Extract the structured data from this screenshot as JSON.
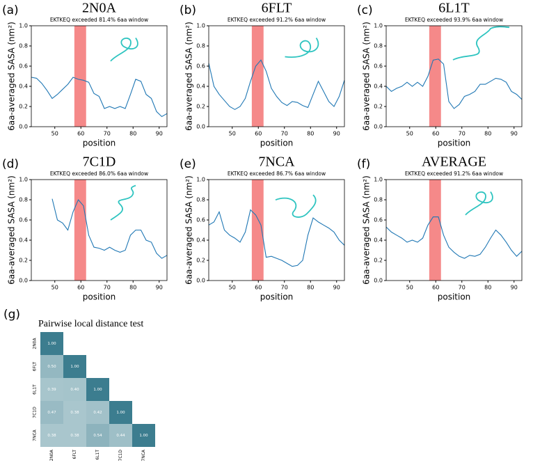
{
  "chart_data": [
    {
      "type": "line",
      "panel_label": "(a)",
      "title": "2N0A",
      "subtitle": "EKTKEQ exceeded 81.4% 6aa window",
      "x_label": "position",
      "y_label": "6aa-averaged SASA (nm²)",
      "x": [
        41,
        43,
        45,
        47,
        49,
        51,
        53,
        55,
        57,
        59,
        61,
        63,
        65,
        67,
        69,
        71,
        73,
        75,
        77,
        79,
        81,
        83,
        85,
        87,
        89,
        91,
        93
      ],
      "values": [
        0.49,
        0.48,
        0.43,
        0.36,
        0.28,
        0.32,
        0.37,
        0.42,
        0.49,
        0.47,
        0.46,
        0.44,
        0.33,
        0.3,
        0.18,
        0.2,
        0.18,
        0.2,
        0.18,
        0.32,
        0.47,
        0.45,
        0.32,
        0.28,
        0.15,
        0.1,
        0.13
      ],
      "color": "#1f77b4",
      "highlight": [
        57.5,
        62
      ],
      "highlight_color": "#f47c7c",
      "xlim": [
        41,
        93
      ],
      "ylim": [
        0,
        1
      ],
      "xticks": [
        50,
        60,
        70,
        80,
        90
      ],
      "yticks": [
        {
          "value": 0,
          "label": "0.0"
        },
        0.2,
        0.4,
        0.6,
        0.8,
        {
          "value": 1,
          "label": "1.0"
        }
      ]
    },
    {
      "type": "line",
      "panel_label": "(b)",
      "title": "6FLT",
      "subtitle": "EKTKEQ exceeded 91.2% 6aa window",
      "x_label": "position",
      "y_label": "6aa-averaged SASA (nm²)",
      "x": [
        41,
        43,
        45,
        47,
        49,
        51,
        53,
        55,
        57,
        59,
        61,
        63,
        65,
        67,
        69,
        71,
        73,
        75,
        77,
        79,
        81,
        83,
        85,
        87,
        89,
        91,
        93
      ],
      "values": [
        0.63,
        0.4,
        0.32,
        0.26,
        0.2,
        0.17,
        0.2,
        0.28,
        0.45,
        0.6,
        0.66,
        0.55,
        0.38,
        0.3,
        0.24,
        0.21,
        0.25,
        0.24,
        0.21,
        0.19,
        0.32,
        0.45,
        0.35,
        0.25,
        0.2,
        0.3,
        0.46
      ],
      "color": "#1f77b4",
      "highlight": [
        57.5,
        62
      ],
      "highlight_color": "#f47c7c",
      "xlim": [
        41,
        93
      ],
      "ylim": [
        0,
        1
      ],
      "xticks": [
        50,
        60,
        70,
        80,
        90
      ],
      "yticks": [
        {
          "value": 0,
          "label": "0.0"
        },
        0.2,
        0.4,
        0.6,
        0.8,
        {
          "value": 1,
          "label": "1.0"
        }
      ]
    },
    {
      "type": "line",
      "panel_label": "(c)",
      "title": "6L1T",
      "subtitle": "EKTKEQ exceeded 93.9% 6aa window",
      "x_label": "position",
      "y_label": "6aa-averaged SASA (nm²)",
      "x": [
        41,
        43,
        45,
        47,
        49,
        51,
        53,
        55,
        57,
        59,
        61,
        63,
        65,
        67,
        69,
        71,
        73,
        75,
        77,
        79,
        81,
        83,
        85,
        87,
        89,
        91,
        93
      ],
      "values": [
        0.4,
        0.35,
        0.38,
        0.4,
        0.44,
        0.4,
        0.44,
        0.4,
        0.5,
        0.66,
        0.67,
        0.62,
        0.25,
        0.18,
        0.22,
        0.3,
        0.32,
        0.35,
        0.42,
        0.42,
        0.45,
        0.48,
        0.47,
        0.44,
        0.35,
        0.32,
        0.27
      ],
      "color": "#1f77b4",
      "highlight": [
        57.5,
        62
      ],
      "highlight_color": "#f47c7c",
      "xlim": [
        41,
        93
      ],
      "ylim": [
        0,
        1
      ],
      "xticks": [
        50,
        60,
        70,
        80,
        90
      ],
      "yticks": [
        {
          "value": 0,
          "label": "0.0"
        },
        0.2,
        0.4,
        0.6,
        0.8,
        {
          "value": 1,
          "label": "1.0"
        }
      ]
    },
    {
      "type": "line",
      "panel_label": "(d)",
      "title": "7C1D",
      "subtitle": "EKTKEQ exceeded 86.0% 6aa window",
      "x_label": "position",
      "y_label": "6aa-averaged SASA (nm²)",
      "x": [
        49,
        51,
        53,
        55,
        57,
        59,
        61,
        63,
        65,
        67,
        69,
        71,
        73,
        75,
        77,
        79,
        81,
        83,
        85,
        87,
        89,
        91,
        93
      ],
      "values": [
        0.81,
        0.6,
        0.57,
        0.5,
        0.68,
        0.8,
        0.74,
        0.45,
        0.33,
        0.32,
        0.3,
        0.33,
        0.3,
        0.28,
        0.3,
        0.45,
        0.5,
        0.5,
        0.4,
        0.38,
        0.27,
        0.22,
        0.25
      ],
      "color": "#1f77b4",
      "highlight": [
        57.5,
        62
      ],
      "highlight_color": "#f47c7c",
      "xlim": [
        41,
        93
      ],
      "ylim": [
        0,
        1
      ],
      "xticks": [
        50,
        60,
        70,
        80,
        90
      ],
      "yticks": [
        {
          "value": 0,
          "label": "0.0"
        },
        0.2,
        0.4,
        0.6,
        0.8,
        {
          "value": 1,
          "label": "1.0"
        }
      ]
    },
    {
      "type": "line",
      "panel_label": "(e)",
      "title": "7NCA",
      "subtitle": "EKTKEQ exceeded 86.7% 6aa window",
      "x_label": "position",
      "y_label": "6aa-averaged SASA (nm²)",
      "x": [
        41,
        43,
        45,
        47,
        49,
        51,
        53,
        55,
        57,
        59,
        61,
        63,
        65,
        67,
        69,
        71,
        73,
        75,
        77,
        79,
        81,
        83,
        85,
        87,
        89,
        91,
        93
      ],
      "values": [
        0.55,
        0.58,
        0.68,
        0.5,
        0.45,
        0.42,
        0.38,
        0.48,
        0.7,
        0.65,
        0.55,
        0.23,
        0.24,
        0.22,
        0.2,
        0.17,
        0.14,
        0.15,
        0.2,
        0.45,
        0.62,
        0.58,
        0.55,
        0.52,
        0.48,
        0.4,
        0.35
      ],
      "color": "#1f77b4",
      "highlight": [
        57.5,
        62
      ],
      "highlight_color": "#f47c7c",
      "xlim": [
        41,
        93
      ],
      "ylim": [
        0,
        1
      ],
      "xticks": [
        50,
        60,
        70,
        80,
        90
      ],
      "yticks": [
        {
          "value": 0,
          "label": "0.0"
        },
        0.2,
        0.4,
        0.6,
        0.8,
        {
          "value": 1,
          "label": "1.0"
        }
      ]
    },
    {
      "type": "line",
      "panel_label": "(f)",
      "title": "AVERAGE",
      "subtitle": "EKTKEQ exceeded 91.2% 6aa window",
      "x_label": "position",
      "y_label": "6aa-averaged SASA (nm²)",
      "x": [
        41,
        43,
        45,
        47,
        49,
        51,
        53,
        55,
        57,
        59,
        61,
        63,
        65,
        67,
        69,
        71,
        73,
        75,
        77,
        79,
        81,
        83,
        85,
        87,
        89,
        91,
        93
      ],
      "values": [
        0.53,
        0.48,
        0.45,
        0.42,
        0.38,
        0.4,
        0.38,
        0.42,
        0.55,
        0.63,
        0.63,
        0.45,
        0.33,
        0.28,
        0.24,
        0.22,
        0.25,
        0.24,
        0.26,
        0.33,
        0.42,
        0.5,
        0.45,
        0.38,
        0.3,
        0.24,
        0.29
      ],
      "color": "#1f77b4",
      "highlight": [
        57.5,
        62
      ],
      "highlight_color": "#f47c7c",
      "xlim": [
        41,
        93
      ],
      "ylim": [
        0,
        1
      ],
      "xticks": [
        50,
        60,
        70,
        80,
        90
      ],
      "yticks": [
        {
          "value": 0,
          "label": "0.0"
        },
        0.2,
        0.4,
        0.6,
        0.8,
        {
          "value": 1,
          "label": "1.0"
        }
      ]
    },
    {
      "type": "heatmap",
      "panel_label": "(g)",
      "title": "Pairwise local distance test",
      "categories": [
        "2N0A",
        "6FLT",
        "6L1T",
        "7C1D",
        "7NCA"
      ],
      "matrix": [
        [
          1.0
        ],
        [
          0.5,
          1.0
        ],
        [
          0.39,
          0.4,
          1.0
        ],
        [
          0.47,
          0.38,
          0.42,
          1.0
        ],
        [
          0.38,
          0.38,
          0.54,
          0.44,
          1.0
        ]
      ],
      "value_labels": [
        [
          "1.00"
        ],
        [
          "0.50",
          "1.00"
        ],
        [
          "0.39",
          "0.40",
          "1.00"
        ],
        [
          "0.47",
          "0.38",
          "0.42",
          "1.00"
        ],
        [
          "0.38",
          "0.38",
          "0.54",
          "0.44",
          "1.00"
        ]
      ],
      "colors": [
        "#a9c6cd",
        "#3c7d8f"
      ]
    }
  ]
}
